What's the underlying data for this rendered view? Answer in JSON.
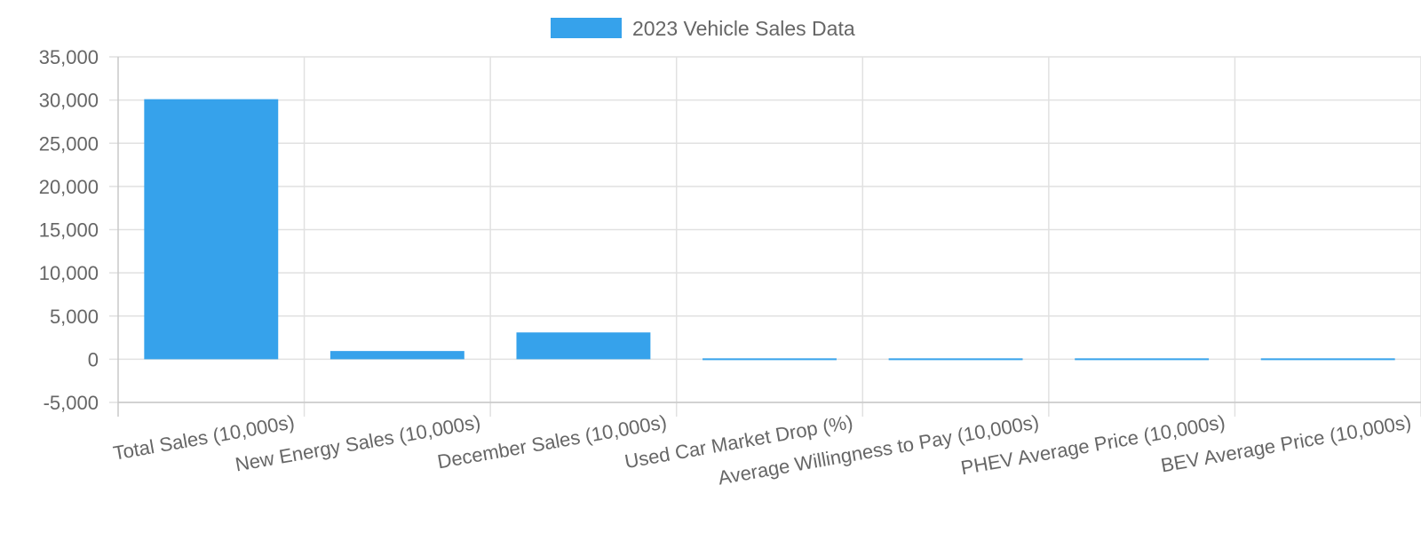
{
  "chart_data": {
    "type": "bar",
    "title": "",
    "xlabel": "",
    "ylabel": "",
    "categories": [
      "Total Sales (10,000s)",
      "New Energy Sales (10,000s)",
      "December Sales (10,000s)",
      "Used Car Market Drop (%)",
      "Average Willingness to Pay (10,000s)",
      "PHEV Average Price (10,000s)",
      "BEV Average Price (10,000s)"
    ],
    "series": [
      {
        "name": "2023 Vehicle Sales Data",
        "color": "#36a2eb",
        "values": [
          30100,
          950,
          3100,
          -20,
          25,
          20,
          18
        ]
      }
    ],
    "ylim": [
      -5000,
      35000
    ],
    "yticks": [
      35000,
      30000,
      25000,
      20000,
      15000,
      10000,
      5000,
      0,
      -5000
    ],
    "ytick_labels": [
      "35,000",
      "30,000",
      "25,000",
      "20,000",
      "15,000",
      "10,000",
      "5,000",
      "0",
      "-5,000"
    ],
    "grid": true,
    "legend": "top-center"
  }
}
